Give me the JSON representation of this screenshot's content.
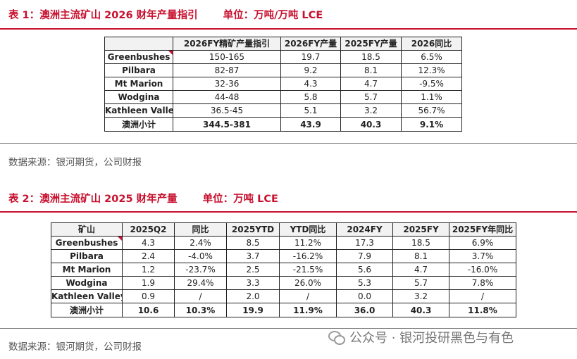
{
  "table1": {
    "title": "表 1：澳洲主流矿山 2026 财年产量指引",
    "unit": "单位：万吨/万吨 LCE",
    "headers": [
      "",
      "2026FY精矿产量指引",
      "2026FY产量",
      "2025FY产量",
      "2026同比"
    ],
    "rows": [
      [
        "Greenbushes",
        "150-165",
        "19.7",
        "18.5",
        "6.5%"
      ],
      [
        "Pilbara",
        "82-87",
        "9.2",
        "8.1",
        "12.3%"
      ],
      [
        "Mt Marion",
        "32-36",
        "4.3",
        "4.7",
        "-9.5%"
      ],
      [
        "Wodgina",
        "44-48",
        "5.8",
        "5.7",
        "1.1%"
      ],
      [
        "Kathleen Valley",
        "36.5-45",
        "5.1",
        "3.2",
        "56.7%"
      ]
    ],
    "total": [
      "澳洲小计",
      "344.5-381",
      "43.9",
      "40.3",
      "9.1%"
    ],
    "source": "数据来源：银河期货，公司财报"
  },
  "table2": {
    "title": "表 2：澳洲主流矿山 2025 财年产量",
    "unit": "单位：万吨 LCE",
    "headers": [
      "矿山",
      "2025Q2",
      "同比",
      "2025YTD",
      "YTD同比",
      "2024FY",
      "2025FY",
      "2025FY年同比"
    ],
    "rows": [
      [
        "Greenbushes",
        "4.3",
        "2.4%",
        "8.5",
        "11.2%",
        "17.3",
        "18.5",
        "6.9%"
      ],
      [
        "Pilbara",
        "2.4",
        "-4.0%",
        "3.7",
        "-16.2%",
        "7.9",
        "8.1",
        "3.7%"
      ],
      [
        "Mt Marion",
        "1.2",
        "-23.7%",
        "2.5",
        "-21.5%",
        "5.6",
        "4.7",
        "-16.0%"
      ],
      [
        "Wodgina",
        "1.9",
        "29.4%",
        "3.3",
        "26.0%",
        "5.3",
        "5.7",
        "7.8%"
      ],
      [
        "Kathleen Valley",
        "0.9",
        "/",
        "2.0",
        "/",
        "0.0",
        "3.2",
        "/"
      ]
    ],
    "total": [
      "澳洲小计",
      "10.6",
      "10.3%",
      "19.9",
      "11.9%",
      "36.0",
      "40.3",
      "11.8%"
    ],
    "source": "数据来源：银河期货，公司财报"
  },
  "watermark": {
    "text": "公众号 · 银河投研黑色与有色",
    "icon": "wechat-icon"
  },
  "colors": {
    "accent": "#c8102e"
  }
}
